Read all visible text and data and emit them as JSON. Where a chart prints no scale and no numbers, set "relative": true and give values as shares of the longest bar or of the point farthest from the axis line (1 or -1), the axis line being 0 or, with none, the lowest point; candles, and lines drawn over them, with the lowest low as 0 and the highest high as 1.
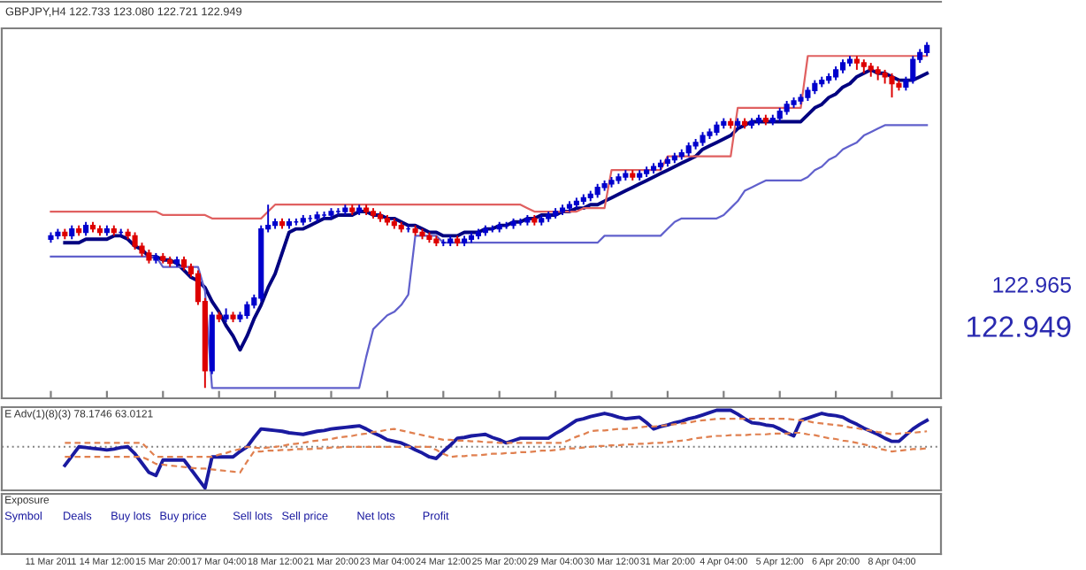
{
  "chart_data": [
    {
      "type": "candlestick",
      "title": "GBPJPY,H4 122.733 123.080 122.721 122.949",
      "relative": true,
      "tick_labels": "x",
      "categories": [
        "11 Mar 2011",
        null,
        null,
        null,
        null,
        null,
        null,
        null,
        "14 Mar 12:00",
        null,
        null,
        null,
        null,
        null,
        null,
        null,
        "15 Mar 20:00",
        null,
        null,
        null,
        null,
        null,
        null,
        null,
        "17 Mar 04:00",
        null,
        null,
        null,
        null,
        null,
        null,
        null,
        "18 Mar 12:00",
        null,
        null,
        null,
        null,
        null,
        null,
        null,
        "21 Mar 20:00",
        null,
        null,
        null,
        null,
        null,
        null,
        null,
        "23 Mar 04:00",
        null,
        null,
        null,
        null,
        null,
        null,
        null,
        "24 Mar 12:00",
        null,
        null,
        null,
        null,
        null,
        null,
        null,
        "25 Mar 20:00",
        null,
        null,
        null,
        null,
        null,
        null,
        null,
        "29 Mar 04:00",
        null,
        null,
        null,
        null,
        null,
        null,
        null,
        "30 Mar 12:00",
        null,
        null,
        null,
        null,
        null,
        null,
        null,
        "31 Mar 20:00",
        null,
        null,
        null,
        null,
        null,
        null,
        null,
        "4 Apr 04:00",
        null,
        null,
        null,
        null,
        null,
        null,
        null,
        "5 Apr 12:00",
        null,
        null,
        null,
        null,
        null,
        null,
        null,
        "6 Apr 20:00",
        null,
        null,
        null,
        null,
        null,
        null,
        null,
        "8 Apr 04:00",
        null,
        null,
        null,
        null,
        null
      ],
      "ohlc": [
        [
          0.43,
          0.45,
          0.42,
          0.44
        ],
        [
          0.44,
          0.46,
          0.43,
          0.45
        ],
        [
          0.45,
          0.46,
          0.43,
          0.44
        ],
        [
          0.44,
          0.47,
          0.43,
          0.46
        ],
        [
          0.46,
          0.47,
          0.44,
          0.45
        ],
        [
          0.45,
          0.48,
          0.44,
          0.47
        ],
        [
          0.47,
          0.48,
          0.45,
          0.46
        ],
        [
          0.46,
          0.47,
          0.44,
          0.45
        ],
        [
          0.45,
          0.47,
          0.44,
          0.46
        ],
        [
          0.46,
          0.47,
          0.44,
          0.45
        ],
        [
          0.45,
          0.46,
          0.44,
          0.45
        ],
        [
          0.45,
          0.46,
          0.43,
          0.44
        ],
        [
          0.44,
          0.45,
          0.4,
          0.41
        ],
        [
          0.41,
          0.42,
          0.38,
          0.39
        ],
        [
          0.39,
          0.4,
          0.36,
          0.37
        ],
        [
          0.37,
          0.39,
          0.36,
          0.38
        ],
        [
          0.38,
          0.39,
          0.36,
          0.37
        ],
        [
          0.37,
          0.38,
          0.35,
          0.36
        ],
        [
          0.36,
          0.38,
          0.35,
          0.37
        ],
        [
          0.37,
          0.38,
          0.34,
          0.35
        ],
        [
          0.35,
          0.36,
          0.32,
          0.33
        ],
        [
          0.33,
          0.34,
          0.24,
          0.25
        ],
        [
          0.25,
          0.26,
          0,
          0.05
        ],
        [
          0.05,
          0.22,
          0.04,
          0.21
        ],
        [
          0.21,
          0.22,
          0.19,
          0.2
        ],
        [
          0.2,
          0.23,
          0.19,
          0.21
        ],
        [
          0.21,
          0.22,
          0.19,
          0.2
        ],
        [
          0.2,
          0.22,
          0.19,
          0.21
        ],
        [
          0.21,
          0.25,
          0.2,
          0.24
        ],
        [
          0.24,
          0.27,
          0.23,
          0.26
        ],
        [
          0.26,
          0.47,
          0.25,
          0.46
        ],
        [
          0.46,
          0.53,
          0.45,
          0.47
        ],
        [
          0.47,
          0.49,
          0.46,
          0.48
        ],
        [
          0.48,
          0.49,
          0.46,
          0.47
        ],
        [
          0.47,
          0.49,
          0.46,
          0.48
        ],
        [
          0.48,
          0.49,
          0.47,
          0.48
        ],
        [
          0.48,
          0.5,
          0.47,
          0.49
        ],
        [
          0.49,
          0.5,
          0.48,
          0.49
        ],
        [
          0.49,
          0.51,
          0.48,
          0.5
        ],
        [
          0.5,
          0.51,
          0.49,
          0.5
        ],
        [
          0.5,
          0.52,
          0.49,
          0.51
        ],
        [
          0.51,
          0.52,
          0.5,
          0.51
        ],
        [
          0.51,
          0.53,
          0.5,
          0.52
        ],
        [
          0.52,
          0.53,
          0.5,
          0.51
        ],
        [
          0.51,
          0.53,
          0.5,
          0.52
        ],
        [
          0.52,
          0.53,
          0.5,
          0.51
        ],
        [
          0.51,
          0.52,
          0.49,
          0.5
        ],
        [
          0.5,
          0.51,
          0.48,
          0.49
        ],
        [
          0.49,
          0.5,
          0.47,
          0.48
        ],
        [
          0.48,
          0.49,
          0.46,
          0.47
        ],
        [
          0.47,
          0.48,
          0.45,
          0.46
        ],
        [
          0.46,
          0.47,
          0.45,
          0.46
        ],
        [
          0.46,
          0.47,
          0.44,
          0.45
        ],
        [
          0.45,
          0.46,
          0.43,
          0.44
        ],
        [
          0.44,
          0.45,
          0.42,
          0.43
        ],
        [
          0.43,
          0.44,
          0.41,
          0.42
        ],
        [
          0.42,
          0.43,
          0.41,
          0.42
        ],
        [
          0.42,
          0.44,
          0.41,
          0.43
        ],
        [
          0.43,
          0.44,
          0.41,
          0.42
        ],
        [
          0.42,
          0.44,
          0.41,
          0.43
        ],
        [
          0.43,
          0.45,
          0.42,
          0.44
        ],
        [
          0.44,
          0.46,
          0.43,
          0.45
        ],
        [
          0.45,
          0.47,
          0.44,
          0.46
        ],
        [
          0.46,
          0.47,
          0.45,
          0.46
        ],
        [
          0.46,
          0.48,
          0.45,
          0.47
        ],
        [
          0.47,
          0.48,
          0.46,
          0.47
        ],
        [
          0.47,
          0.49,
          0.46,
          0.48
        ],
        [
          0.48,
          0.49,
          0.47,
          0.48
        ],
        [
          0.48,
          0.5,
          0.47,
          0.49
        ],
        [
          0.49,
          0.5,
          0.47,
          0.48
        ],
        [
          0.48,
          0.5,
          0.47,
          0.49
        ],
        [
          0.49,
          0.51,
          0.48,
          0.5
        ],
        [
          0.5,
          0.52,
          0.49,
          0.51
        ],
        [
          0.51,
          0.53,
          0.5,
          0.52
        ],
        [
          0.52,
          0.54,
          0.51,
          0.53
        ],
        [
          0.53,
          0.55,
          0.52,
          0.54
        ],
        [
          0.54,
          0.56,
          0.53,
          0.55
        ],
        [
          0.55,
          0.57,
          0.54,
          0.56
        ],
        [
          0.56,
          0.59,
          0.55,
          0.58
        ],
        [
          0.58,
          0.6,
          0.57,
          0.59
        ],
        [
          0.59,
          0.61,
          0.58,
          0.6
        ],
        [
          0.6,
          0.62,
          0.59,
          0.61
        ],
        [
          0.61,
          0.63,
          0.6,
          0.62
        ],
        [
          0.62,
          0.63,
          0.6,
          0.61
        ],
        [
          0.61,
          0.63,
          0.6,
          0.62
        ],
        [
          0.62,
          0.64,
          0.61,
          0.63
        ],
        [
          0.63,
          0.65,
          0.62,
          0.64
        ],
        [
          0.64,
          0.66,
          0.63,
          0.65
        ],
        [
          0.65,
          0.67,
          0.64,
          0.66
        ],
        [
          0.66,
          0.68,
          0.65,
          0.67
        ],
        [
          0.67,
          0.69,
          0.66,
          0.68
        ],
        [
          0.68,
          0.71,
          0.67,
          0.7
        ],
        [
          0.7,
          0.72,
          0.69,
          0.71
        ],
        [
          0.71,
          0.74,
          0.7,
          0.73
        ],
        [
          0.73,
          0.75,
          0.72,
          0.74
        ],
        [
          0.74,
          0.77,
          0.73,
          0.76
        ],
        [
          0.76,
          0.78,
          0.75,
          0.77
        ],
        [
          0.77,
          0.78,
          0.75,
          0.76
        ],
        [
          0.76,
          0.78,
          0.75,
          0.77
        ],
        [
          0.77,
          0.78,
          0.75,
          0.76
        ],
        [
          0.76,
          0.78,
          0.75,
          0.77
        ],
        [
          0.77,
          0.79,
          0.76,
          0.78
        ],
        [
          0.78,
          0.79,
          0.76,
          0.77
        ],
        [
          0.77,
          0.79,
          0.76,
          0.78
        ],
        [
          0.78,
          0.81,
          0.77,
          0.8
        ],
        [
          0.8,
          0.83,
          0.79,
          0.82
        ],
        [
          0.82,
          0.84,
          0.81,
          0.83
        ],
        [
          0.83,
          0.85,
          0.82,
          0.84
        ],
        [
          0.84,
          0.87,
          0.83,
          0.86
        ],
        [
          0.86,
          0.89,
          0.85,
          0.88
        ],
        [
          0.88,
          0.9,
          0.87,
          0.89
        ],
        [
          0.89,
          0.91,
          0.88,
          0.9
        ],
        [
          0.9,
          0.93,
          0.89,
          0.92
        ],
        [
          0.92,
          0.95,
          0.91,
          0.94
        ],
        [
          0.94,
          0.96,
          0.93,
          0.95
        ],
        [
          0.95,
          0.96,
          0.92,
          0.94
        ],
        [
          0.94,
          0.95,
          0.91,
          0.93
        ],
        [
          0.93,
          0.94,
          0.9,
          0.92
        ],
        [
          0.92,
          0.93,
          0.89,
          0.91
        ],
        [
          0.91,
          0.92,
          0.88,
          0.9
        ],
        [
          0.9,
          0.91,
          0.84,
          0.88
        ],
        [
          0.88,
          0.89,
          0.86,
          0.87
        ],
        [
          0.87,
          0.9,
          0.86,
          0.89
        ],
        [
          0.89,
          0.96,
          0.88,
          0.95
        ],
        [
          0.95,
          0.98,
          0.94,
          0.97
        ],
        [
          0.97,
          1,
          0.96,
          0.99
        ]
      ],
      "colors": [
        "#0000cc",
        "#0000cc",
        "#dd0000",
        "#0000cc",
        "#dd0000",
        "#0000cc",
        "#dd0000",
        "#dd0000",
        "#0000cc",
        "#dd0000",
        "#0000cc",
        "#dd0000",
        "#dd0000",
        "#dd0000",
        "#dd0000",
        "#0000cc",
        "#dd0000",
        "#dd0000",
        "#0000cc",
        "#dd0000",
        "#dd0000",
        "#dd0000",
        "#dd0000",
        "#0000cc",
        "#dd0000",
        "#0000cc",
        "#dd0000",
        "#0000cc",
        "#0000cc",
        "#0000cc",
        "#0000cc",
        "#0000cc",
        "#0000cc",
        "#dd0000",
        "#0000cc",
        "#0000cc",
        "#0000cc",
        "#0000cc",
        "#0000cc",
        "#0000cc",
        "#0000cc",
        "#0000cc",
        "#0000cc",
        "#dd0000",
        "#0000cc",
        "#dd0000",
        "#dd0000",
        "#dd0000",
        "#dd0000",
        "#dd0000",
        "#dd0000",
        "#0000cc",
        "#dd0000",
        "#dd0000",
        "#dd0000",
        "#dd0000",
        "#0000cc",
        "#0000cc",
        "#dd0000",
        "#0000cc",
        "#0000cc",
        "#0000cc",
        "#0000cc",
        "#0000cc",
        "#0000cc",
        "#0000cc",
        "#0000cc",
        "#0000cc",
        "#0000cc",
        "#dd0000",
        "#0000cc",
        "#0000cc",
        "#0000cc",
        "#0000cc",
        "#0000cc",
        "#0000cc",
        "#0000cc",
        "#0000cc",
        "#0000cc",
        "#0000cc",
        "#0000cc",
        "#0000cc",
        "#0000cc",
        "#dd0000",
        "#0000cc",
        "#0000cc",
        "#0000cc",
        "#0000cc",
        "#0000cc",
        "#0000cc",
        "#0000cc",
        "#0000cc",
        "#0000cc",
        "#0000cc",
        "#0000cc",
        "#0000cc",
        "#0000cc",
        "#dd0000",
        "#0000cc",
        "#dd0000",
        "#0000cc",
        "#0000cc",
        "#dd0000",
        "#0000cc",
        "#0000cc",
        "#0000cc",
        "#0000cc",
        "#0000cc",
        "#0000cc",
        "#0000cc",
        "#0000cc",
        "#0000cc",
        "#0000cc",
        "#0000cc",
        "#0000cc",
        "#dd0000",
        "#dd0000",
        "#dd0000",
        "#dd0000",
        "#dd0000",
        "#dd0000",
        "#dd0000",
        "#0000cc",
        "#0000cc",
        "#0000cc",
        "#0000cc"
      ],
      "series": [
        {
          "type": "line",
          "color": "#000080",
          "values": [
            null,
            null,
            0.42,
            0.42,
            0.42,
            0.43,
            0.43,
            0.43,
            0.43,
            0.44,
            0.44,
            0.43,
            0.41,
            0.4,
            0.38,
            0.38,
            0.37,
            0.37,
            0.36,
            0.34,
            0.32,
            0.31,
            0.29,
            0.25,
            0.22,
            0.18,
            0.15,
            0.11,
            0.15,
            0.2,
            0.24,
            0.29,
            0.33,
            0.39,
            0.45,
            0.46,
            0.46,
            0.47,
            0.48,
            0.49,
            0.49,
            0.5,
            0.5,
            0.5,
            0.51,
            0.51,
            0.5,
            0.5,
            0.49,
            0.49,
            0.48,
            0.47,
            0.47,
            0.46,
            0.45,
            0.45,
            0.44,
            0.44,
            0.44,
            0.45,
            0.45,
            0.45,
            0.46,
            0.46,
            0.47,
            0.47,
            0.48,
            0.48,
            0.49,
            0.49,
            0.5,
            0.5,
            0.5,
            0.51,
            0.51,
            0.52,
            0.52,
            0.53,
            0.53,
            0.54,
            0.55,
            0.56,
            0.57,
            0.58,
            0.59,
            0.6,
            0.61,
            0.62,
            0.63,
            0.64,
            0.65,
            0.66,
            0.67,
            0.69,
            0.7,
            0.71,
            0.72,
            0.73,
            0.75,
            0.76,
            0.77,
            0.77,
            0.77,
            0.77,
            0.77,
            0.77,
            0.77,
            0.77,
            0.79,
            0.81,
            0.82,
            0.84,
            0.85,
            0.87,
            0.88,
            0.9,
            0.91,
            0.92,
            0.91,
            0.91,
            0.9,
            0.89,
            0.89,
            0.89,
            0.9,
            0.91
          ]
        },
        {
          "type": "line",
          "color": "#e06060",
          "values": [
            0.51,
            0.51,
            0.51,
            0.51,
            0.51,
            0.51,
            0.51,
            0.51,
            0.51,
            0.51,
            0.51,
            0.51,
            0.51,
            0.51,
            0.51,
            0.51,
            0.5,
            0.5,
            0.5,
            0.5,
            0.5,
            0.5,
            0.5,
            0.49,
            0.49,
            0.49,
            0.49,
            0.49,
            0.49,
            0.49,
            0.49,
            0.51,
            0.53,
            0.53,
            0.53,
            0.53,
            0.53,
            0.53,
            0.53,
            0.53,
            0.53,
            0.53,
            0.53,
            0.53,
            0.53,
            0.53,
            0.53,
            0.53,
            0.53,
            0.53,
            0.53,
            0.53,
            0.53,
            0.53,
            0.53,
            0.53,
            0.53,
            0.53,
            0.53,
            0.53,
            0.53,
            0.53,
            0.53,
            0.53,
            0.53,
            0.53,
            0.53,
            0.53,
            0.52,
            0.51,
            0.51,
            0.51,
            0.51,
            0.51,
            0.51,
            0.51,
            0.52,
            0.52,
            0.52,
            0.52,
            0.63,
            0.63,
            0.63,
            0.63,
            0.63,
            0.63,
            0.63,
            0.63,
            0.67,
            0.67,
            0.67,
            0.67,
            0.67,
            0.67,
            0.67,
            0.67,
            0.67,
            0.67,
            0.81,
            0.81,
            0.81,
            0.81,
            0.81,
            0.81,
            0.81,
            0.81,
            0.81,
            0.81,
            0.96,
            0.96,
            0.96,
            0.96,
            0.96,
            0.96,
            0.96,
            0.96,
            0.96,
            0.96,
            0.96,
            0.96,
            0.96,
            0.96,
            0.96,
            0.96,
            0.96,
            0.96
          ]
        },
        {
          "type": "line",
          "color": "#6060cc",
          "values": [
            0.38,
            0.38,
            0.38,
            0.38,
            0.38,
            0.38,
            0.38,
            0.38,
            0.38,
            0.38,
            0.38,
            0.38,
            0.38,
            0.38,
            0.38,
            0.38,
            0.35,
            0.35,
            0.35,
            0.35,
            0.35,
            0.35,
            0.28,
            0,
            0,
            0,
            0,
            0,
            0,
            0,
            0,
            0,
            0,
            0,
            0,
            0,
            0,
            0,
            0,
            0,
            0,
            0,
            0,
            0,
            0,
            0.09,
            0.17,
            0.19,
            0.21,
            0.22,
            0.24,
            0.27,
            0.44,
            0.44,
            0.44,
            0.44,
            0.42,
            0.42,
            0.42,
            0.42,
            0.42,
            0.42,
            0.42,
            0.42,
            0.42,
            0.42,
            0.42,
            0.42,
            0.42,
            0.42,
            0.42,
            0.42,
            0.42,
            0.42,
            0.42,
            0.42,
            0.42,
            0.42,
            0.42,
            0.44,
            0.44,
            0.44,
            0.44,
            0.44,
            0.44,
            0.44,
            0.44,
            0.44,
            0.46,
            0.48,
            0.49,
            0.49,
            0.49,
            0.49,
            0.49,
            0.49,
            0.5,
            0.52,
            0.54,
            0.57,
            0.58,
            0.59,
            0.6,
            0.6,
            0.6,
            0.6,
            0.6,
            0.6,
            0.61,
            0.63,
            0.64,
            0.66,
            0.67,
            0.69,
            0.7,
            0.71,
            0.73,
            0.74,
            0.75,
            0.76,
            0.76,
            0.76,
            0.76,
            0.76,
            0.76,
            0.76
          ]
        }
      ],
      "annotations": [
        "122.965",
        "122.949"
      ]
    },
    {
      "type": "line",
      "title": "E Adv(1)(8)(3) 78.1746 63.0121",
      "relative": true,
      "tick_labels": false,
      "categories": [
        null,
        null,
        null,
        null,
        null,
        null,
        null,
        null,
        null,
        null,
        null,
        null,
        null,
        null,
        null,
        null,
        null,
        null,
        null,
        null,
        null,
        null,
        null,
        null,
        null,
        null,
        null,
        null,
        null,
        null,
        null,
        null,
        null,
        null,
        null,
        null,
        null,
        null,
        null,
        null,
        null,
        null,
        null,
        null,
        null,
        null,
        null,
        null,
        null,
        null,
        null,
        null,
        null,
        null,
        null,
        null,
        null,
        null,
        null,
        null,
        null,
        null,
        null,
        null,
        null,
        null,
        null,
        null,
        null,
        null,
        null,
        null,
        null,
        null,
        null,
        null,
        null,
        null,
        null,
        null,
        null,
        null,
        null,
        null,
        null,
        null,
        null,
        null,
        null,
        null,
        null,
        null,
        null,
        null,
        null,
        null,
        null,
        null,
        null,
        null,
        null,
        null,
        null,
        null,
        null,
        null,
        null,
        null,
        null,
        null,
        null,
        null,
        null,
        null,
        null,
        null,
        null,
        null,
        null,
        null,
        null,
        null,
        null,
        null,
        null,
        null
      ],
      "series": [
        {
          "color": "#1a1aa0",
          "line_style": "solid",
          "values": [
            null,
            null,
            0.29,
            0.41,
            0.53,
            0.52,
            0.51,
            0.5,
            0.49,
            0.5,
            0.52,
            0.53,
            0.44,
            0.32,
            0.2,
            0.16,
            0.36,
            0.36,
            0.36,
            0.36,
            0.24,
            0.12,
            0,
            0.4,
            0.4,
            0.4,
            0.4,
            0.47,
            0.53,
            0.65,
            0.76,
            0.75,
            0.74,
            0.73,
            0.71,
            0.7,
            0.69,
            0.71,
            0.73,
            0.74,
            0.76,
            0.77,
            0.78,
            0.79,
            0.8,
            0.76,
            0.71,
            0.67,
            0.62,
            0.6,
            0.58,
            0.54,
            0.49,
            0.45,
            0.4,
            0.38,
            0.47,
            0.55,
            0.64,
            0.65,
            0.67,
            0.68,
            0.69,
            0.65,
            0.62,
            0.58,
            0.61,
            0.64,
            0.64,
            0.64,
            0.64,
            0.64,
            0.7,
            0.75,
            0.81,
            0.87,
            0.89,
            0.92,
            0.94,
            0.96,
            0.94,
            0.91,
            0.89,
            0.9,
            0.91,
            0.84,
            0.76,
            0.79,
            0.81,
            0.84,
            0.86,
            0.89,
            0.91,
            0.94,
            0.97,
            1,
            1,
            1,
            0.95,
            0.89,
            0.84,
            0.83,
            0.81,
            0.8,
            0.76,
            0.71,
            0.67,
            0.87,
            0.9,
            0.93,
            0.96,
            0.94,
            0.93,
            0.91,
            0.86,
            0.82,
            0.77,
            0.73,
            0.69,
            0.64,
            0.6,
            0.6,
            0.68,
            0.76,
            0.82,
            0.87
          ]
        },
        {
          "color": "#e08050",
          "line_style": "dashed",
          "values": [
            null,
            null,
            0.58,
            0.58,
            0.58,
            0.58,
            0.58,
            0.58,
            0.58,
            0.58,
            0.58,
            0.58,
            0.58,
            0.58,
            0.49,
            0.4,
            0.4,
            0.4,
            0.4,
            0.4,
            0.4,
            0.4,
            0.4,
            0.4,
            0.43,
            0.45,
            0.48,
            0.5,
            0.53,
            0.52,
            0.51,
            0.52,
            0.53,
            0.54,
            0.56,
            0.57,
            0.58,
            0.6,
            0.61,
            0.62,
            0.63,
            0.65,
            0.66,
            0.67,
            0.69,
            0.7,
            0.72,
            0.73,
            0.75,
            0.76,
            0.74,
            0.72,
            0.7,
            0.68,
            0.66,
            0.64,
            0.62,
            0.62,
            0.61,
            0.61,
            0.6,
            0.6,
            0.59,
            0.59,
            0.58,
            0.58,
            0.58,
            0.58,
            0.58,
            0.58,
            0.58,
            0.58,
            0.58,
            0.58,
            0.62,
            0.66,
            0.69,
            0.73,
            0.74,
            0.74,
            0.75,
            0.76,
            0.76,
            0.77,
            0.78,
            0.79,
            0.79,
            0.8,
            0.81,
            0.82,
            0.83,
            0.84,
            0.86,
            0.87,
            0.88,
            0.89,
            0.89,
            0.89,
            0.89,
            0.89,
            0.89,
            0.89,
            0.89,
            0.89,
            0.89,
            0.89,
            0.88,
            0.87,
            0.86,
            0.84,
            0.83,
            0.82,
            0.81,
            0.8,
            0.78,
            0.77,
            0.75,
            0.74,
            0.72,
            0.71,
            0.69,
            0.7,
            0.71,
            0.71,
            0.72,
            0.73
          ]
        },
        {
          "color": "#e08050",
          "line_style": "dashed",
          "values": [
            null,
            null,
            0.4,
            0.4,
            0.4,
            0.4,
            0.4,
            0.4,
            0.4,
            0.4,
            0.4,
            0.4,
            0.4,
            0.4,
            0.36,
            0.31,
            0.3,
            0.29,
            0.28,
            0.27,
            0.26,
            0.25,
            0.25,
            0.24,
            0.23,
            0.22,
            0.21,
            0.2,
            0.34,
            0.47,
            0.47,
            0.48,
            0.48,
            0.49,
            0.49,
            0.5,
            0.5,
            0.5,
            0.51,
            0.51,
            0.52,
            0.52,
            0.53,
            0.53,
            0.53,
            0.53,
            0.53,
            0.53,
            0.53,
            0.53,
            0.53,
            0.53,
            0.53,
            0.53,
            0.53,
            0.49,
            0.44,
            0.4,
            0.41,
            0.41,
            0.42,
            0.42,
            0.43,
            0.44,
            0.44,
            0.45,
            0.45,
            0.46,
            0.46,
            0.47,
            0.48,
            0.48,
            0.49,
            0.5,
            0.51,
            0.51,
            0.52,
            0.53,
            0.54,
            0.54,
            0.55,
            0.55,
            0.56,
            0.56,
            0.57,
            0.57,
            0.58,
            0.58,
            0.59,
            0.6,
            0.61,
            0.62,
            0.64,
            0.65,
            0.66,
            0.67,
            0.67,
            0.68,
            0.68,
            0.68,
            0.69,
            0.69,
            0.69,
            0.7,
            0.7,
            0.7,
            0.71,
            0.71,
            0.69,
            0.68,
            0.66,
            0.64,
            0.63,
            0.61,
            0.6,
            0.58,
            0.56,
            0.54,
            0.51,
            0.49,
            0.47,
            0.48,
            0.49,
            0.5,
            0.5,
            0.51
          ]
        }
      ],
      "ref_lines": [
        {
          "axis": "y",
          "value": 0.53,
          "color": "#808080",
          "line_style": "dotted"
        }
      ]
    },
    {
      "type": "other",
      "title": "Exposure",
      "annotations": [
        "Symbol",
        "Deals",
        "Buy lots",
        "Buy price",
        "Sell lots",
        "Sell price",
        "Net lots",
        "Profit"
      ]
    }
  ]
}
